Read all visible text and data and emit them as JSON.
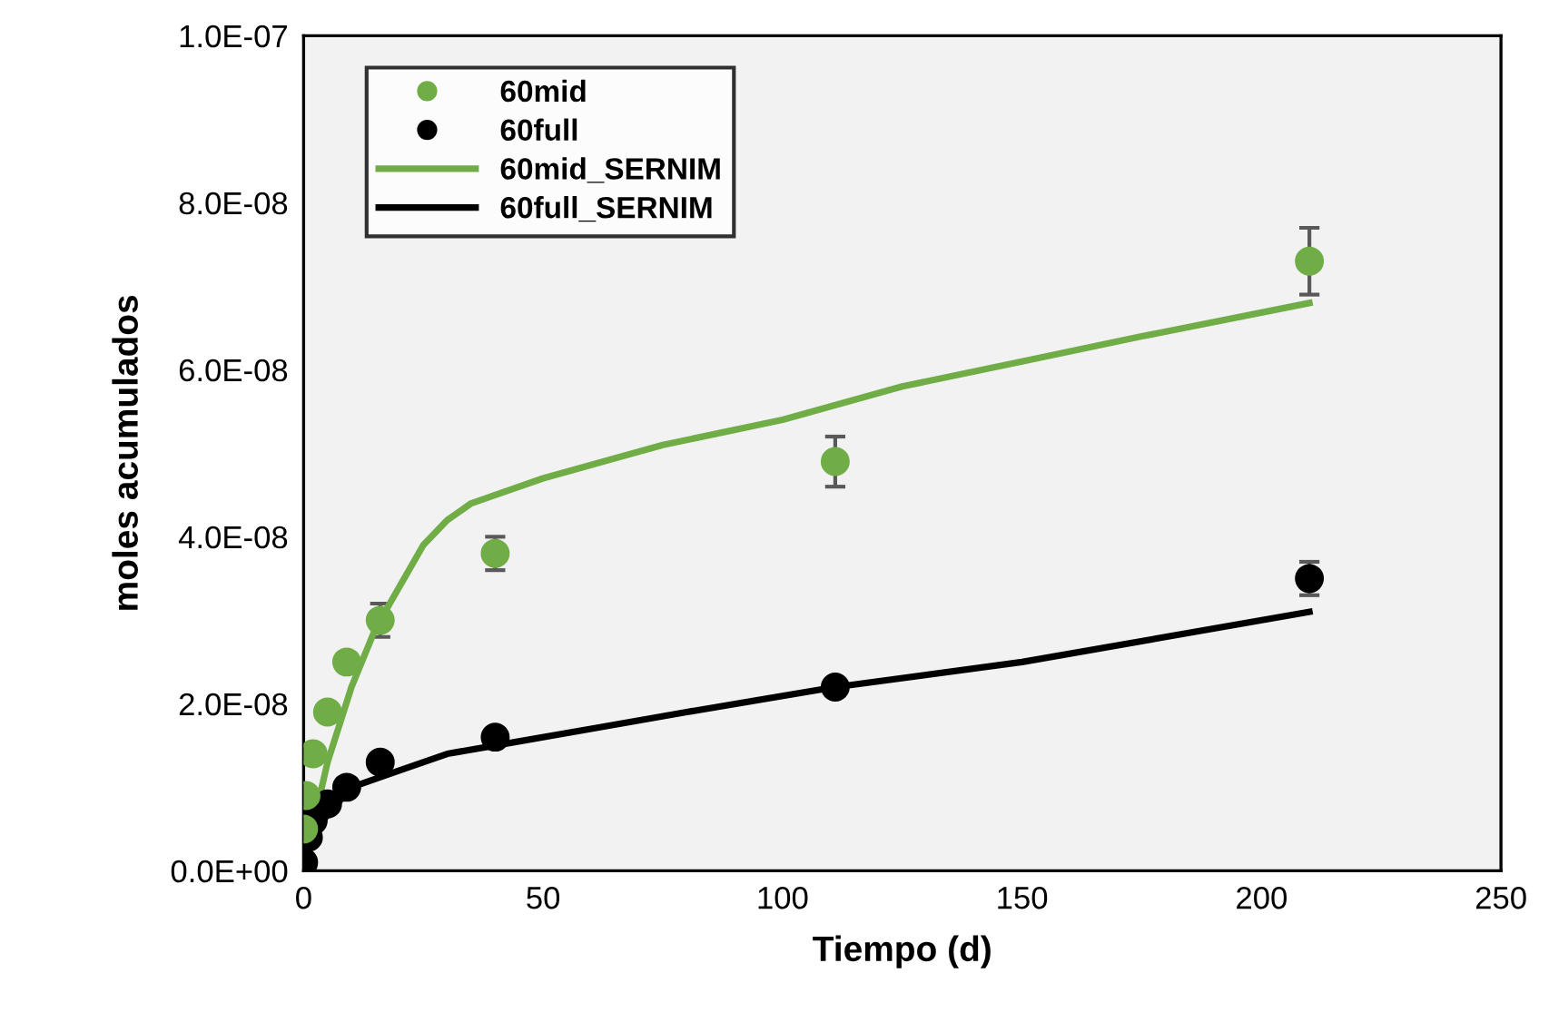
{
  "chart_data": {
    "type": "scatter",
    "xlabel": "Tiempo (d)",
    "ylabel": "moles acumulados",
    "xlim": [
      0,
      250
    ],
    "xticks": [
      0,
      50,
      100,
      150,
      200,
      250
    ],
    "ylim": [
      0,
      1e-07
    ],
    "yticks": [
      {
        "value": 0,
        "label": "0.0E+00"
      },
      {
        "value": 2e-08,
        "label": "2.0E-08"
      },
      {
        "value": 4e-08,
        "label": "4.0E-08"
      },
      {
        "value": 6e-08,
        "label": "6.0E-08"
      },
      {
        "value": 8e-08,
        "label": "8.0E-08"
      },
      {
        "value": 1e-07,
        "label": "1.0E-07"
      }
    ],
    "grid": false,
    "legend": "top left",
    "series": [
      {
        "name": "60mid",
        "marker": "circle",
        "color": "#70ad47",
        "x": [
          0,
          0.5,
          2,
          5,
          9,
          16,
          40,
          111,
          210
        ],
        "values": [
          5e-09,
          9e-09,
          1.4e-08,
          1.9e-08,
          2.5e-08,
          3e-08,
          3.8e-08,
          4.9e-08,
          7.3e-08
        ],
        "errors": [
          null,
          null,
          null,
          null,
          null,
          2e-09,
          2e-09,
          3e-09,
          4e-09
        ]
      },
      {
        "name": "60full",
        "marker": "circle",
        "color": "#000000",
        "x": [
          0,
          1,
          2,
          5,
          9,
          16,
          40,
          111,
          210
        ],
        "values": [
          1e-09,
          4e-09,
          6e-09,
          8e-09,
          1e-08,
          1.3e-08,
          1.6e-08,
          2.2e-08,
          3.5e-08
        ],
        "errors": [
          null,
          null,
          null,
          null,
          null,
          null,
          null,
          null,
          2e-09
        ]
      },
      {
        "name": "60mid_SERNIM",
        "type": "line",
        "marker": "none",
        "color": "#70ad47",
        "x": [
          0,
          1,
          3,
          5,
          10,
          15,
          20,
          25,
          30,
          35,
          40,
          50,
          75,
          100,
          125,
          150,
          175,
          210
        ],
        "values": [
          0,
          3e-09,
          8e-09,
          1.3e-08,
          2.2e-08,
          2.9e-08,
          3.4e-08,
          3.9e-08,
          4.2e-08,
          4.4e-08,
          4.5e-08,
          4.7e-08,
          5.1e-08,
          5.4e-08,
          5.8e-08,
          6.1e-08,
          6.4e-08,
          6.8e-08
        ]
      },
      {
        "name": "60full_SERNIM",
        "type": "line",
        "marker": "none",
        "color": "#000000",
        "x": [
          0,
          1,
          2,
          4,
          7,
          10,
          15,
          20,
          30,
          40,
          60,
          80,
          111,
          150,
          210
        ],
        "values": [
          0,
          3e-09,
          4e-09,
          6e-09,
          8e-09,
          1e-08,
          1.1e-08,
          1.2e-08,
          1.4e-08,
          1.5e-08,
          1.7e-08,
          1.9e-08,
          2.2e-08,
          2.5e-08,
          3.1e-08
        ]
      }
    ]
  }
}
